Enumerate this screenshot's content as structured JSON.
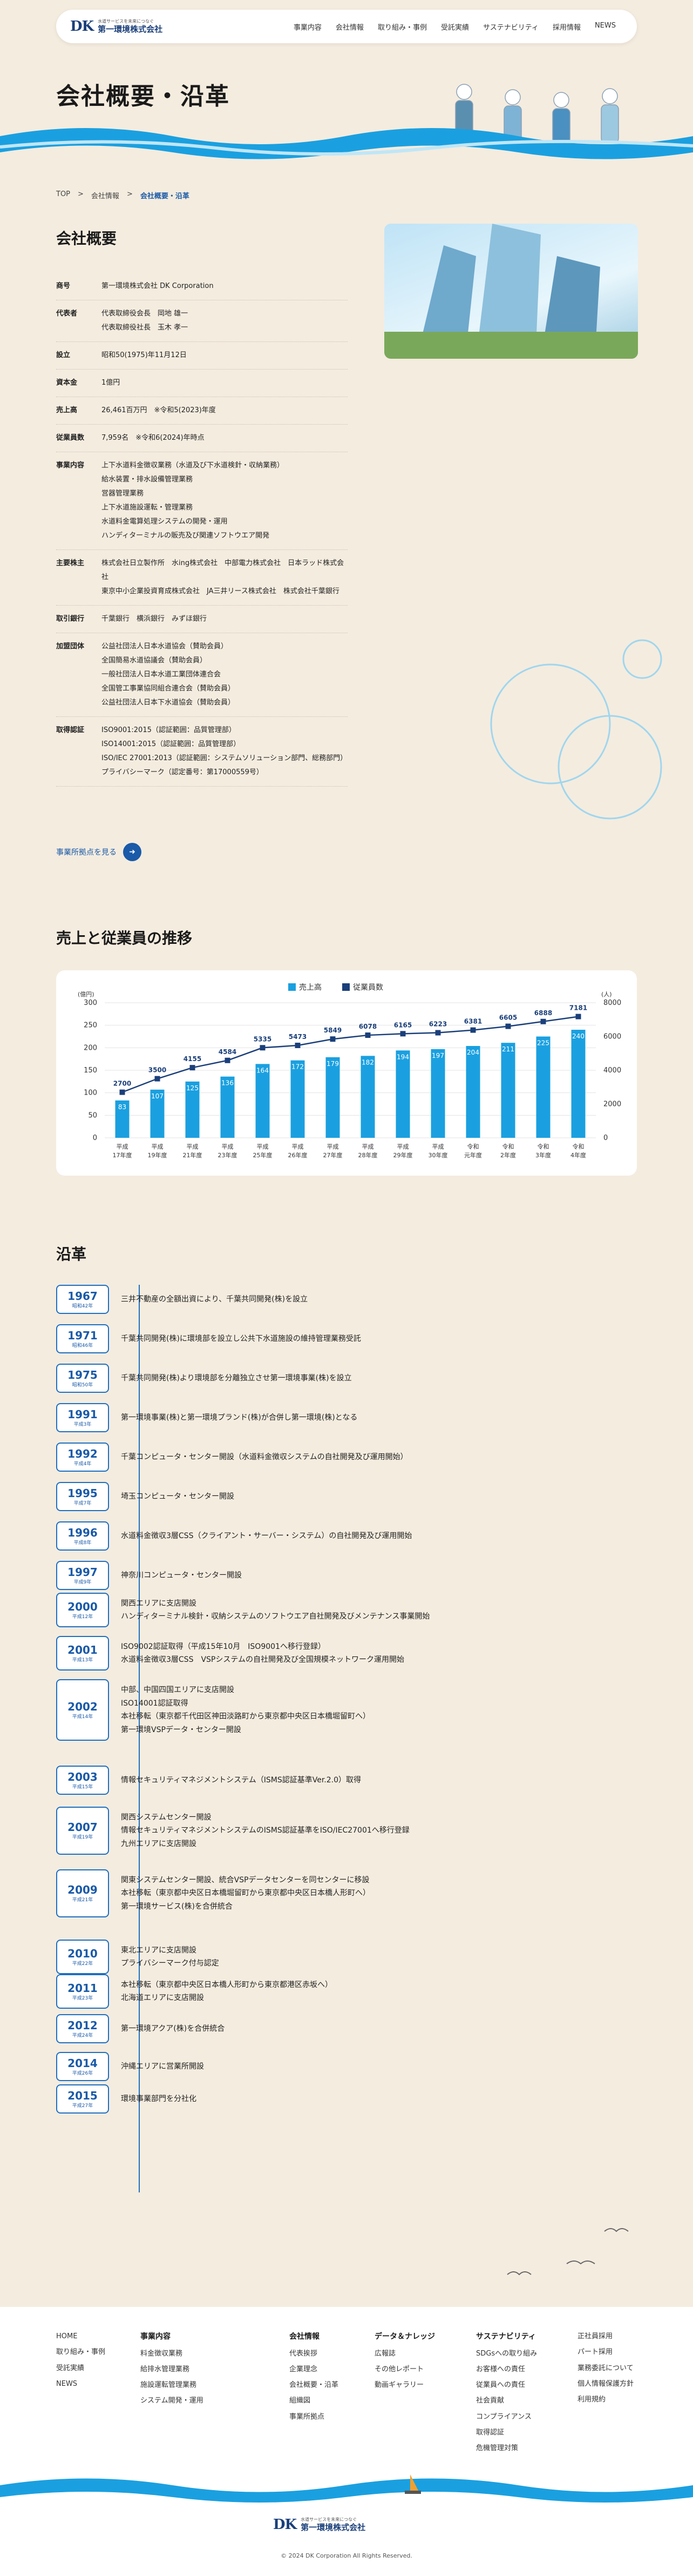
{
  "header": {
    "logo_mark": "DK",
    "logo_tagline": "水道サービスを未来につなぐ",
    "logo_name": "第一環境株式会社",
    "nav": [
      "事業内容",
      "会社情報",
      "取り組み・事例",
      "受託実績",
      "サステナビリティ",
      "採用情報",
      "NEWS"
    ]
  },
  "page_title": "会社概要・沿革",
  "breadcrumb": [
    "TOP",
    "会社情報",
    "会社概要・沿革"
  ],
  "profile": {
    "heading": "会社概要",
    "rows": [
      {
        "k": "商号",
        "v": "第一環境株式会社 DK Corporation"
      },
      {
        "k": "代表者",
        "v": "代表取締役会長　岡地 雄一\n代表取締役社長　玉木 孝一"
      },
      {
        "k": "設立",
        "v": "昭和50(1975)年11月12日"
      },
      {
        "k": "資本金",
        "v": "1億円"
      },
      {
        "k": "売上高",
        "v": "26,461百万円　※令和5(2023)年度"
      },
      {
        "k": "従業員数",
        "v": "7,959名　※令和6(2024)年時点"
      },
      {
        "k": "事業内容",
        "v": "上下水道料金徴収業務（水道及び下水道検針・収納業務）\n給水装置・排水設備管理業務\n営器管理業務\n上下水道施設運転・管理業務\n水道料金電算処理システムの開発・運用\nハンディターミナルの販売及び関連ソフトウエア開発"
      },
      {
        "k": "主要株主",
        "v": "株式会社日立製作所　水ing株式会社　中部電力株式会社　日本ラッド株式会社\n東京中小企業投資育成株式会社　JA三井リース株式会社　株式会社千葉銀行"
      },
      {
        "k": "取引銀行",
        "v": "千葉銀行　横浜銀行　みずほ銀行"
      },
      {
        "k": "加盟団体",
        "v": "公益社団法人日本水道協会（賛助会員）\n全国簡易水道協議会（賛助会員）\n一般社団法人日本水道工業団体連合会\n全国管工事業協同組合連合会（賛助会員）\n公益社団法人日本下水道協会（賛助会員）"
      },
      {
        "k": "取得認証",
        "v": "ISO9001:2015（認証範囲：品質管理部）\nISO14001:2015（認証範囲：品質管理部）\nISO/IEC 27001:2013（認証範囲：システムソリューション部門、総務部門）\nプライバシーマーク（認定番号：第17000559号）"
      }
    ],
    "more": "事業所拠点を見る"
  },
  "chart_section": {
    "heading": "売上と従業員の推移"
  },
  "chart_data": {
    "type": "bar",
    "categories": [
      "平成17年度",
      "平成19年度",
      "平成21年度",
      "平成23年度",
      "平成25年度",
      "平成26年度",
      "平成27年度",
      "平成28年度",
      "平成29年度",
      "平成30年度",
      "令和元年度",
      "令和2年度",
      "令和3年度",
      "令和4年度"
    ],
    "cat_top": [
      "平成",
      "平成",
      "平成",
      "平成",
      "平成",
      "平成",
      "平成",
      "平成",
      "平成",
      "平成",
      "令和",
      "令和",
      "令和",
      "令和"
    ],
    "cat_bot": [
      "17年度",
      "19年度",
      "21年度",
      "23年度",
      "25年度",
      "26年度",
      "27年度",
      "28年度",
      "29年度",
      "30年度",
      "元年度",
      "2年度",
      "3年度",
      "4年度"
    ],
    "series": [
      {
        "name": "売上高",
        "values": [
          83,
          107,
          125,
          136,
          164,
          172,
          179,
          182,
          194,
          197,
          204,
          211,
          225,
          240
        ],
        "color": "#1aa0e0"
      },
      {
        "name": "従業員数",
        "values": [
          2700,
          3500,
          4155,
          4584,
          5335,
          5473,
          5849,
          6078,
          6165,
          6223,
          6381,
          6605,
          6888,
          7181
        ],
        "color": "#1a3f7a"
      }
    ],
    "yunit_left": "(億円)",
    "yunit_right": "(人)",
    "ylim_left": [
      0,
      300
    ],
    "ylim_right": [
      0,
      8000
    ],
    "yticks_left": [
      "0",
      "50",
      "100",
      "150",
      "200",
      "250",
      "300"
    ],
    "yticks_right": [
      "0",
      "2000",
      "4000",
      "6000",
      "8000"
    ]
  },
  "history": {
    "heading": "沿革",
    "items": [
      {
        "y": "1967",
        "e": "昭和42年",
        "d": "三井不動産の全額出資により、千葉共同開発(株)を設立"
      },
      {
        "y": "1971",
        "e": "昭和46年",
        "d": "千葉共同開発(株)に環境部を設立し公共下水道施設の維持管理業務受託"
      },
      {
        "y": "1975",
        "e": "昭和50年",
        "d": "千葉共同開発(株)より環境部を分離独立させ第一環境事業(株)を設立"
      },
      {
        "y": "1991",
        "e": "平成3年",
        "d": "第一環境事業(株)と第一環境プランド(株)が合併し第一環境(株)となる"
      },
      {
        "y": "1992",
        "e": "平成4年",
        "d": "千葉コンピュータ・センター開設（水道料金徴収システムの自社開発及び運用開始）"
      },
      {
        "y": "1995",
        "e": "平成7年",
        "d": "埼玉コンピュータ・センター開設"
      },
      {
        "y": "1996",
        "e": "平成8年",
        "d": "水道料金徴収3層CSS（クライアント・サーバー・システム）の自社開発及び運用開始"
      },
      {
        "y": "1997",
        "e": "平成9年",
        "d": "神奈川コンピュータ・センター開設"
      },
      {
        "y": "2000",
        "e": "平成12年",
        "d": "関西エリアに支店開設\nハンディターミナル検針・収納システムのソフトウエア自社開発及びメンテナンス事業開始"
      },
      {
        "y": "2001",
        "e": "平成13年",
        "d": "ISO9002認証取得（平成15年10月　ISO9001へ移行登録）\n水道料金徴収3層CSS　VSPシステムの自社開発及び全国規模ネットワーク運用開始"
      },
      {
        "y": "2002",
        "e": "平成14年",
        "d": "中部、中国四国エリアに支店開設\nISO14001認証取得\n本社移転（東京都千代田区神田淡路町から東京都中央区日本橋堀留町へ）\n第一環境VSPデータ・センター開設"
      },
      {
        "y": "2003",
        "e": "平成15年",
        "d": "情報セキュリティマネジメントシステム（ISMS認証基準Ver.2.0）取得"
      },
      {
        "y": "2007",
        "e": "平成19年",
        "d": "関西システムセンター開設\n情報セキュリティマネジメントシステムのISMS認証基準をISO/IEC27001へ移行登録\n九州エリアに支店開設"
      },
      {
        "y": "2009",
        "e": "平成21年",
        "d": "関東システムセンター開設、統合VSPデータセンターを同センターに移設\n本社移転（東京都中央区日本橋堀留町から東京都中央区日本橋人形町へ）\n第一環境サービス(株)を合併統合"
      },
      {
        "y": "2010",
        "e": "平成22年",
        "d": "東北エリアに支店開設\nプライバシーマーク付与認定"
      },
      {
        "y": "2011",
        "e": "平成23年",
        "d": "本社移転（東京都中央区日本橋人形町から東京都港区赤坂へ）\n北海道エリアに支店開設"
      },
      {
        "y": "2012",
        "e": "平成24年",
        "d": "第一環境アクア(株)を合併統合"
      },
      {
        "y": "2014",
        "e": "平成26年",
        "d": "沖縄エリアに営業所開設"
      },
      {
        "y": "2015",
        "e": "平成27年",
        "d": "環境事業部門を分社化"
      }
    ]
  },
  "footer": {
    "col1": [
      "HOME",
      "取り組み・事例",
      "受託実績",
      "NEWS"
    ],
    "col2": {
      "t": "事業内容",
      "items": [
        "料金徴収業務",
        "給排水管理業務",
        "施設運転管理業務",
        "システム開発・運用"
      ]
    },
    "col3": {
      "t": "会社情報",
      "items": [
        "代表挨拶",
        "企業理念",
        "会社概要・沿革",
        "組織図",
        "事業所拠点"
      ]
    },
    "col4": {
      "t": "データ＆ナレッジ",
      "items": [
        "広報誌",
        "その他レポート",
        "動画ギャラリー"
      ]
    },
    "col5": {
      "t": "サステナビリティ",
      "items": [
        "SDGsへの取り組み",
        "お客様への責任",
        "従業員への責任",
        "社会貢献",
        "コンプライアンス",
        "取得認証",
        "危機管理対策"
      ]
    },
    "col6": [
      "正社員採用",
      "パート採用",
      "業務委託について",
      "個人情報保護方針",
      "利用規約"
    ],
    "copyright": "© 2024 DK Corporation All Rights Reserved."
  }
}
